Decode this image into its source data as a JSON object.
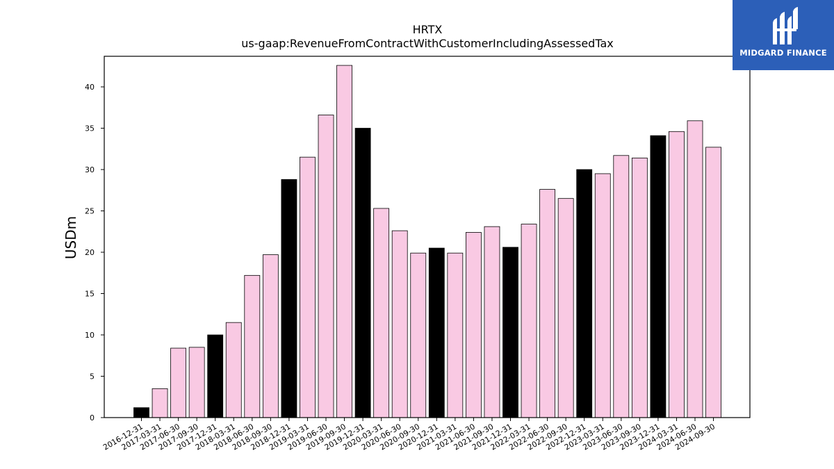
{
  "chart_data": {
    "type": "bar",
    "title": "HRTX",
    "subtitle": "us-gaap:RevenueFromContractWithCustomerIncludingAssessedTax",
    "xlabel": "",
    "ylabel": "USDm",
    "ylim": [
      0,
      43.7
    ],
    "yticks": [
      0,
      5,
      10,
      15,
      20,
      25,
      30,
      35,
      40
    ],
    "grid": false,
    "categories": [
      "2016-12-31",
      "2017-03-31",
      "2017-06-30",
      "2017-09-30",
      "2017-12-31",
      "2018-03-31",
      "2018-06-30",
      "2018-09-30",
      "2018-12-31",
      "2019-03-31",
      "2019-06-30",
      "2019-09-30",
      "2019-12-31",
      "2020-03-31",
      "2020-06-30",
      "2020-09-30",
      "2020-12-31",
      "2021-03-31",
      "2021-06-30",
      "2021-09-30",
      "2021-12-31",
      "2022-03-31",
      "2022-06-30",
      "2022-09-30",
      "2022-12-31",
      "2023-03-31",
      "2023-06-30",
      "2023-09-30",
      "2023-12-31",
      "2024-03-31",
      "2024-06-30",
      "2024-09-30"
    ],
    "values": [
      1.2,
      3.5,
      8.4,
      8.5,
      10.0,
      11.5,
      17.2,
      19.7,
      28.8,
      31.5,
      36.6,
      42.6,
      35.0,
      25.3,
      22.6,
      19.9,
      20.5,
      19.9,
      22.4,
      23.1,
      20.6,
      23.4,
      27.6,
      26.5,
      30.0,
      29.5,
      31.7,
      31.4,
      34.1,
      34.6,
      35.9,
      32.7
    ],
    "colors": {
      "year_end": "#000000",
      "quarter": "#f9c9e3",
      "edge": "#000000"
    }
  },
  "logo": {
    "text": "MIDGARD FINANCE",
    "background": "#2c5fb8"
  }
}
